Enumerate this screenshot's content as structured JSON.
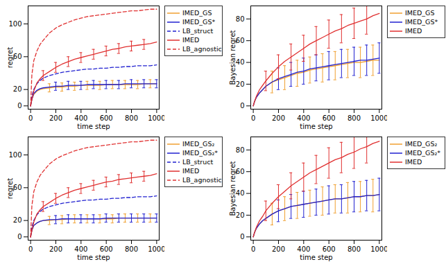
{
  "chart_data": [
    {
      "type": "line",
      "xlabel": "time step",
      "ylabel": "regret",
      "x": [
        0,
        10,
        25,
        50,
        75,
        100,
        150,
        200,
        250,
        300,
        350,
        400,
        450,
        500,
        550,
        600,
        650,
        700,
        750,
        800,
        850,
        900,
        950,
        1000
      ],
      "xlim": [
        -20,
        1020
      ],
      "xticks": [
        0,
        200,
        400,
        600,
        800,
        1000
      ],
      "ylim": [
        -4,
        122
      ],
      "yticks": [
        0,
        20,
        60,
        100
      ],
      "legend": "right",
      "series": [
        {
          "name": "IMED_GS",
          "color": "#f0a030",
          "line_style": "solid",
          "values": [
            0,
            8,
            14,
            18,
            20,
            21,
            22,
            23,
            23,
            24,
            24,
            25,
            25,
            25,
            25,
            26,
            26,
            26,
            26,
            26,
            26,
            27,
            27,
            27
          ],
          "errors": [
            null,
            null,
            null,
            null,
            null,
            null,
            5,
            null,
            5,
            null,
            5,
            null,
            5,
            null,
            5,
            null,
            5,
            null,
            5,
            null,
            5,
            null,
            5,
            null
          ]
        },
        {
          "name": "IMED_GS*",
          "color": "#2020d0",
          "line_style": "solid",
          "values": [
            0,
            8,
            15,
            19,
            21,
            22,
            23,
            24,
            24,
            25,
            25,
            25,
            26,
            26,
            26,
            26,
            26,
            26,
            27,
            27,
            27,
            27,
            27,
            27
          ],
          "errors": [
            null,
            null,
            null,
            null,
            null,
            null,
            null,
            5,
            null,
            5,
            null,
            5,
            null,
            5,
            null,
            5,
            null,
            5,
            null,
            5,
            null,
            5,
            null,
            5
          ]
        },
        {
          "name": "LB_struct",
          "color": "#2020d0",
          "line_style": "dashed",
          "values": [
            0,
            12,
            20,
            27,
            31,
            34,
            37,
            39,
            41,
            42,
            43,
            44,
            45,
            45,
            46,
            46,
            47,
            47,
            48,
            48,
            49,
            49,
            49,
            50
          ]
        },
        {
          "name": "IMED",
          "color": "#e03030",
          "line_style": "solid",
          "values": [
            0,
            8,
            18,
            28,
            33,
            37,
            42,
            47,
            51,
            54,
            57,
            59,
            61,
            63,
            65,
            67,
            69,
            70,
            72,
            73,
            74,
            75,
            76,
            78
          ],
          "errors": [
            null,
            null,
            null,
            null,
            null,
            6,
            null,
            6,
            null,
            6,
            null,
            6,
            null,
            6,
            null,
            6,
            null,
            6,
            null,
            6,
            null,
            6,
            null,
            null
          ]
        },
        {
          "name": "LB_agnostic",
          "color": "#e03030",
          "line_style": "dashed",
          "values": [
            0,
            38,
            55,
            67,
            75,
            80,
            89,
            95,
            99,
            102,
            105,
            107,
            109,
            110,
            111,
            112,
            113,
            114,
            115,
            116,
            116,
            117,
            118,
            118
          ]
        }
      ]
    },
    {
      "type": "line",
      "xlabel": "time step",
      "ylabel": "Bayesian regret",
      "x": [
        0,
        10,
        25,
        50,
        75,
        100,
        150,
        200,
        250,
        300,
        350,
        400,
        450,
        500,
        550,
        600,
        650,
        700,
        750,
        800,
        850,
        900,
        950,
        1000
      ],
      "xlim": [
        -20,
        1020
      ],
      "xticks": [
        0,
        200,
        400,
        600,
        800,
        1000
      ],
      "ylim": [
        -3,
        92
      ],
      "yticks": [
        0,
        20,
        40,
        60,
        80
      ],
      "legend": "right",
      "series": [
        {
          "name": "IMED_GS",
          "color": "#f0a030",
          "line_style": "solid",
          "values": [
            0,
            4,
            8,
            12,
            15,
            18,
            22,
            24,
            26,
            28,
            30,
            31,
            33,
            34,
            35,
            36,
            37,
            38,
            39,
            40,
            40,
            41,
            42,
            42
          ],
          "errors": [
            null,
            null,
            null,
            null,
            null,
            null,
            10,
            null,
            11,
            null,
            12,
            null,
            12,
            null,
            13,
            null,
            13,
            null,
            13,
            null,
            14,
            null,
            14,
            null
          ]
        },
        {
          "name": "IMED_GS*",
          "color": "#2020d0",
          "line_style": "solid",
          "values": [
            0,
            4,
            8,
            12,
            15,
            18,
            22,
            25,
            27,
            29,
            31,
            32,
            34,
            35,
            36,
            37,
            38,
            39,
            40,
            41,
            42,
            42,
            43,
            44
          ],
          "errors": [
            null,
            null,
            null,
            null,
            null,
            null,
            null,
            10,
            null,
            11,
            null,
            12,
            null,
            12,
            null,
            13,
            null,
            13,
            null,
            13,
            null,
            14,
            null,
            14
          ]
        },
        {
          "name": "IMED",
          "color": "#e03030",
          "line_style": "solid",
          "values": [
            0,
            4,
            9,
            15,
            19,
            23,
            30,
            36,
            41,
            45,
            49,
            53,
            57,
            60,
            63,
            66,
            69,
            71,
            74,
            76,
            78,
            80,
            83,
            85
          ],
          "errors": [
            null,
            null,
            null,
            null,
            null,
            9,
            null,
            11,
            null,
            12,
            null,
            12,
            null,
            13,
            null,
            13,
            null,
            13,
            null,
            14,
            null,
            14,
            null,
            null
          ]
        }
      ]
    },
    {
      "type": "line",
      "xlabel": "time step",
      "ylabel": "regret",
      "x": [
        0,
        10,
        25,
        50,
        75,
        100,
        150,
        200,
        250,
        300,
        350,
        400,
        450,
        500,
        550,
        600,
        650,
        700,
        750,
        800,
        850,
        900,
        950,
        1000
      ],
      "xlim": [
        -20,
        1020
      ],
      "xticks": [
        0,
        200,
        400,
        600,
        800,
        1000
      ],
      "ylim": [
        -4,
        122
      ],
      "yticks": [
        0,
        20,
        60,
        100
      ],
      "legend": "right",
      "series": [
        {
          "name": "IMED_GS₂",
          "color": "#f0a030",
          "line_style": "solid",
          "values": [
            0,
            8,
            14,
            17,
            19,
            20,
            20,
            21,
            21,
            22,
            22,
            22,
            22,
            22,
            22,
            22,
            22,
            23,
            23,
            23,
            23,
            23,
            23,
            23
          ],
          "errors": [
            null,
            null,
            null,
            null,
            null,
            null,
            5,
            null,
            5,
            null,
            5,
            null,
            5,
            null,
            5,
            null,
            5,
            null,
            5,
            null,
            5,
            null,
            5,
            null
          ]
        },
        {
          "name": "IMED_GS₂*",
          "color": "#2020d0",
          "line_style": "solid",
          "values": [
            0,
            8,
            14,
            17,
            19,
            20,
            21,
            21,
            22,
            22,
            22,
            22,
            22,
            22,
            22,
            23,
            23,
            23,
            23,
            23,
            23,
            23,
            23,
            23
          ],
          "errors": [
            null,
            null,
            null,
            null,
            null,
            null,
            null,
            5,
            null,
            5,
            null,
            5,
            null,
            5,
            null,
            5,
            null,
            5,
            null,
            5,
            null,
            5,
            null,
            5
          ]
        },
        {
          "name": "LB_struct",
          "color": "#2020d0",
          "line_style": "dashed",
          "values": [
            0,
            12,
            20,
            27,
            31,
            34,
            37,
            39,
            41,
            42,
            43,
            44,
            45,
            45,
            46,
            46,
            47,
            47,
            48,
            48,
            49,
            49,
            49,
            50
          ]
        },
        {
          "name": "IMED",
          "color": "#e03030",
          "line_style": "solid",
          "values": [
            0,
            8,
            18,
            28,
            33,
            37,
            42,
            47,
            51,
            54,
            57,
            59,
            61,
            63,
            65,
            67,
            68,
            70,
            71,
            72,
            73,
            74,
            75,
            77
          ],
          "errors": [
            null,
            null,
            null,
            null,
            null,
            6,
            null,
            6,
            null,
            6,
            null,
            6,
            null,
            6,
            null,
            6,
            null,
            6,
            null,
            6,
            null,
            6,
            null,
            null
          ]
        },
        {
          "name": "LB_agnostic",
          "color": "#e03030",
          "line_style": "dashed",
          "values": [
            0,
            38,
            55,
            67,
            75,
            80,
            89,
            95,
            99,
            102,
            105,
            107,
            109,
            110,
            111,
            112,
            113,
            114,
            115,
            116,
            116,
            117,
            118,
            118
          ]
        }
      ]
    },
    {
      "type": "line",
      "xlabel": "time step",
      "ylabel": "Bayesian regret",
      "x": [
        0,
        10,
        25,
        50,
        75,
        100,
        150,
        200,
        250,
        300,
        350,
        400,
        450,
        500,
        550,
        600,
        650,
        700,
        750,
        800,
        850,
        900,
        950,
        1000
      ],
      "xlim": [
        -20,
        1020
      ],
      "xticks": [
        0,
        200,
        400,
        600,
        800,
        1000
      ],
      "ylim": [
        -3,
        92
      ],
      "yticks": [
        0,
        20,
        40,
        60,
        80
      ],
      "legend": "right",
      "series": [
        {
          "name": "IMED_GS₂",
          "color": "#f0a030",
          "line_style": "solid",
          "values": [
            0,
            4,
            8,
            12,
            15,
            17,
            21,
            24,
            26,
            28,
            29,
            30,
            31,
            32,
            33,
            34,
            35,
            35,
            36,
            37,
            37,
            38,
            38,
            39
          ],
          "errors": [
            null,
            null,
            null,
            null,
            null,
            null,
            10,
            null,
            11,
            null,
            12,
            null,
            12,
            null,
            13,
            null,
            13,
            null,
            14,
            null,
            14,
            null,
            15,
            null
          ]
        },
        {
          "name": "IMED_GS₂*",
          "color": "#2020d0",
          "line_style": "solid",
          "values": [
            0,
            4,
            8,
            12,
            15,
            17,
            21,
            24,
            26,
            28,
            29,
            30,
            31,
            32,
            33,
            34,
            35,
            35,
            36,
            37,
            37,
            38,
            38,
            39
          ],
          "errors": [
            null,
            null,
            null,
            null,
            null,
            null,
            null,
            10,
            null,
            11,
            null,
            12,
            null,
            12,
            null,
            13,
            null,
            13,
            null,
            14,
            null,
            14,
            null,
            15
          ]
        },
        {
          "name": "IMED",
          "color": "#e03030",
          "line_style": "solid",
          "values": [
            0,
            4,
            9,
            15,
            19,
            24,
            31,
            37,
            42,
            47,
            51,
            55,
            59,
            62,
            65,
            68,
            71,
            73,
            76,
            78,
            81,
            83,
            86,
            88
          ],
          "errors": [
            null,
            null,
            null,
            null,
            null,
            9,
            null,
            11,
            null,
            12,
            null,
            13,
            null,
            13,
            null,
            14,
            null,
            14,
            null,
            15,
            null,
            15,
            null,
            null
          ]
        }
      ]
    }
  ]
}
